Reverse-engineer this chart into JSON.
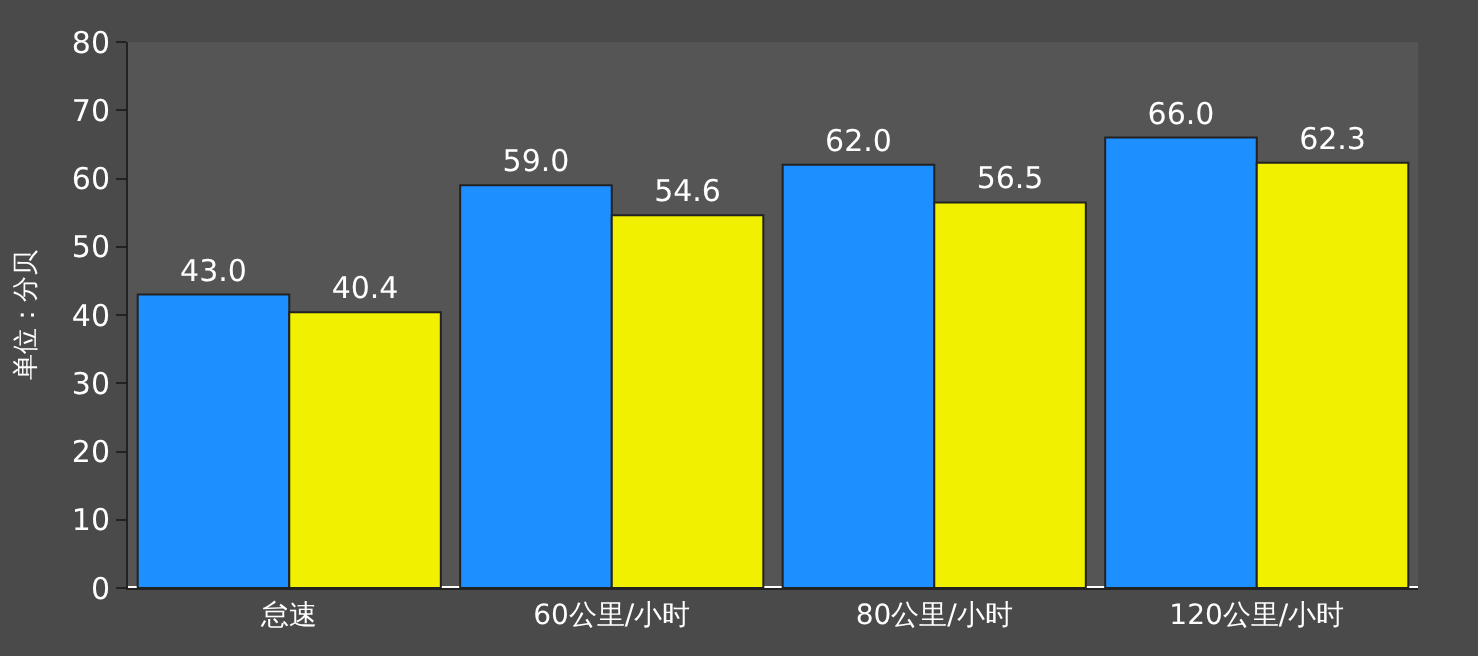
{
  "chart_data": {
    "type": "bar",
    "ylabel": "单位：分贝",
    "categories": [
      "怠速",
      "60公里/小时",
      "80公里/小时",
      "120公里/小时"
    ],
    "series": [
      {
        "color": "#1e8fff",
        "values": [
          43.0,
          59.0,
          62.0,
          66.0
        ],
        "value_labels": [
          "43.0",
          "59.0",
          "62.0",
          "66.0"
        ]
      },
      {
        "color": "#f0f000",
        "values": [
          40.4,
          54.6,
          56.5,
          62.3
        ],
        "value_labels": [
          "40.4",
          "54.6",
          "56.5",
          "62.3"
        ]
      }
    ],
    "ylim": [
      0,
      80
    ],
    "yticks": [
      0,
      10,
      20,
      30,
      40,
      50,
      60,
      70,
      80
    ],
    "grid": false
  }
}
